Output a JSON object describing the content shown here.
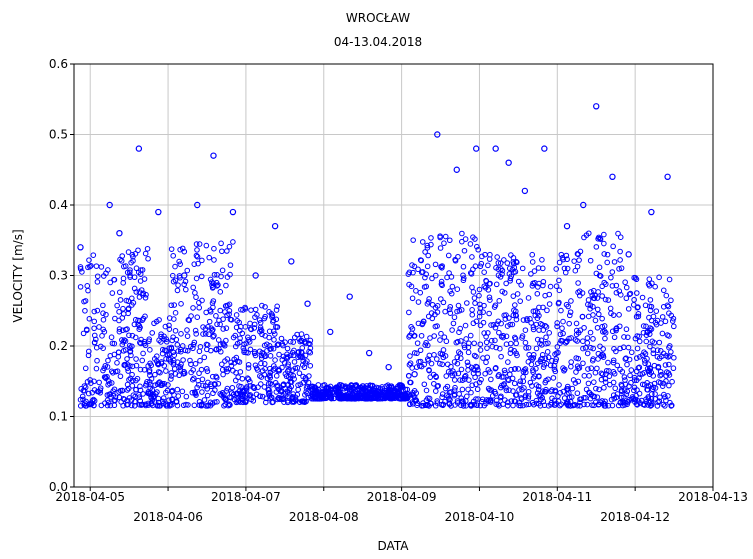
{
  "chart_data": {
    "type": "scatter",
    "title": "WROCŁAW",
    "subtitle": "04-13.04.2018",
    "xlabel": "DATA",
    "ylabel": "VELOCITY [m/s]",
    "xlim": [
      "2018-04-04 19:00",
      "2018-04-13 00:00"
    ],
    "ylim": [
      0.0,
      0.6
    ],
    "y_ticks": [
      "0.0",
      "0.1",
      "0.2",
      "0.3",
      "0.4",
      "0.5",
      "0.6"
    ],
    "x_ticks_upper": [
      "2018-04-05",
      "2018-04-07",
      "2018-04-09",
      "2018-04-11",
      "2018-04-13"
    ],
    "x_ticks_lower": [
      "2018-04-06",
      "2018-04-08",
      "2018-04-10",
      "2018-04-12"
    ],
    "grid": true,
    "marker": "open circle",
    "color": "#0000ff",
    "description_series": [
      {
        "name": "",
        "x": [
          "2018-04-04 21:00",
          "2018-04-05 06:00",
          "2018-04-05 09:00",
          "2018-04-05 15:00",
          "2018-04-05 21:00",
          "2018-04-06 05:00",
          "2018-04-06 09:00",
          "2018-04-06 14:00",
          "2018-04-06 20:00",
          "2018-04-07 03:00",
          "2018-04-07 09:00",
          "2018-04-07 14:00",
          "2018-04-07 19:00",
          "2018-04-08 02:00",
          "2018-04-08 08:00",
          "2018-04-08 14:00",
          "2018-04-08 20:00",
          "2018-04-09 04:00",
          "2018-04-09 11:00",
          "2018-04-09 17:00",
          "2018-04-09 23:00",
          "2018-04-10 05:00",
          "2018-04-10 09:00",
          "2018-04-10 14:00",
          "2018-04-10 20:00",
          "2018-04-11 03:00",
          "2018-04-11 08:00",
          "2018-04-11 12:00",
          "2018-04-11 17:00",
          "2018-04-11 22:00",
          "2018-04-12 05:00",
          "2018-04-12 10:00"
        ],
        "y": [
          0.34,
          0.4,
          0.36,
          0.48,
          0.39,
          0.3,
          0.4,
          0.47,
          0.39,
          0.3,
          0.37,
          0.32,
          0.26,
          0.22,
          0.27,
          0.19,
          0.17,
          0.16,
          0.5,
          0.45,
          0.48,
          0.48,
          0.46,
          0.42,
          0.48,
          0.37,
          0.4,
          0.54,
          0.44,
          0.33,
          0.39,
          0.44
        ]
      }
    ]
  }
}
